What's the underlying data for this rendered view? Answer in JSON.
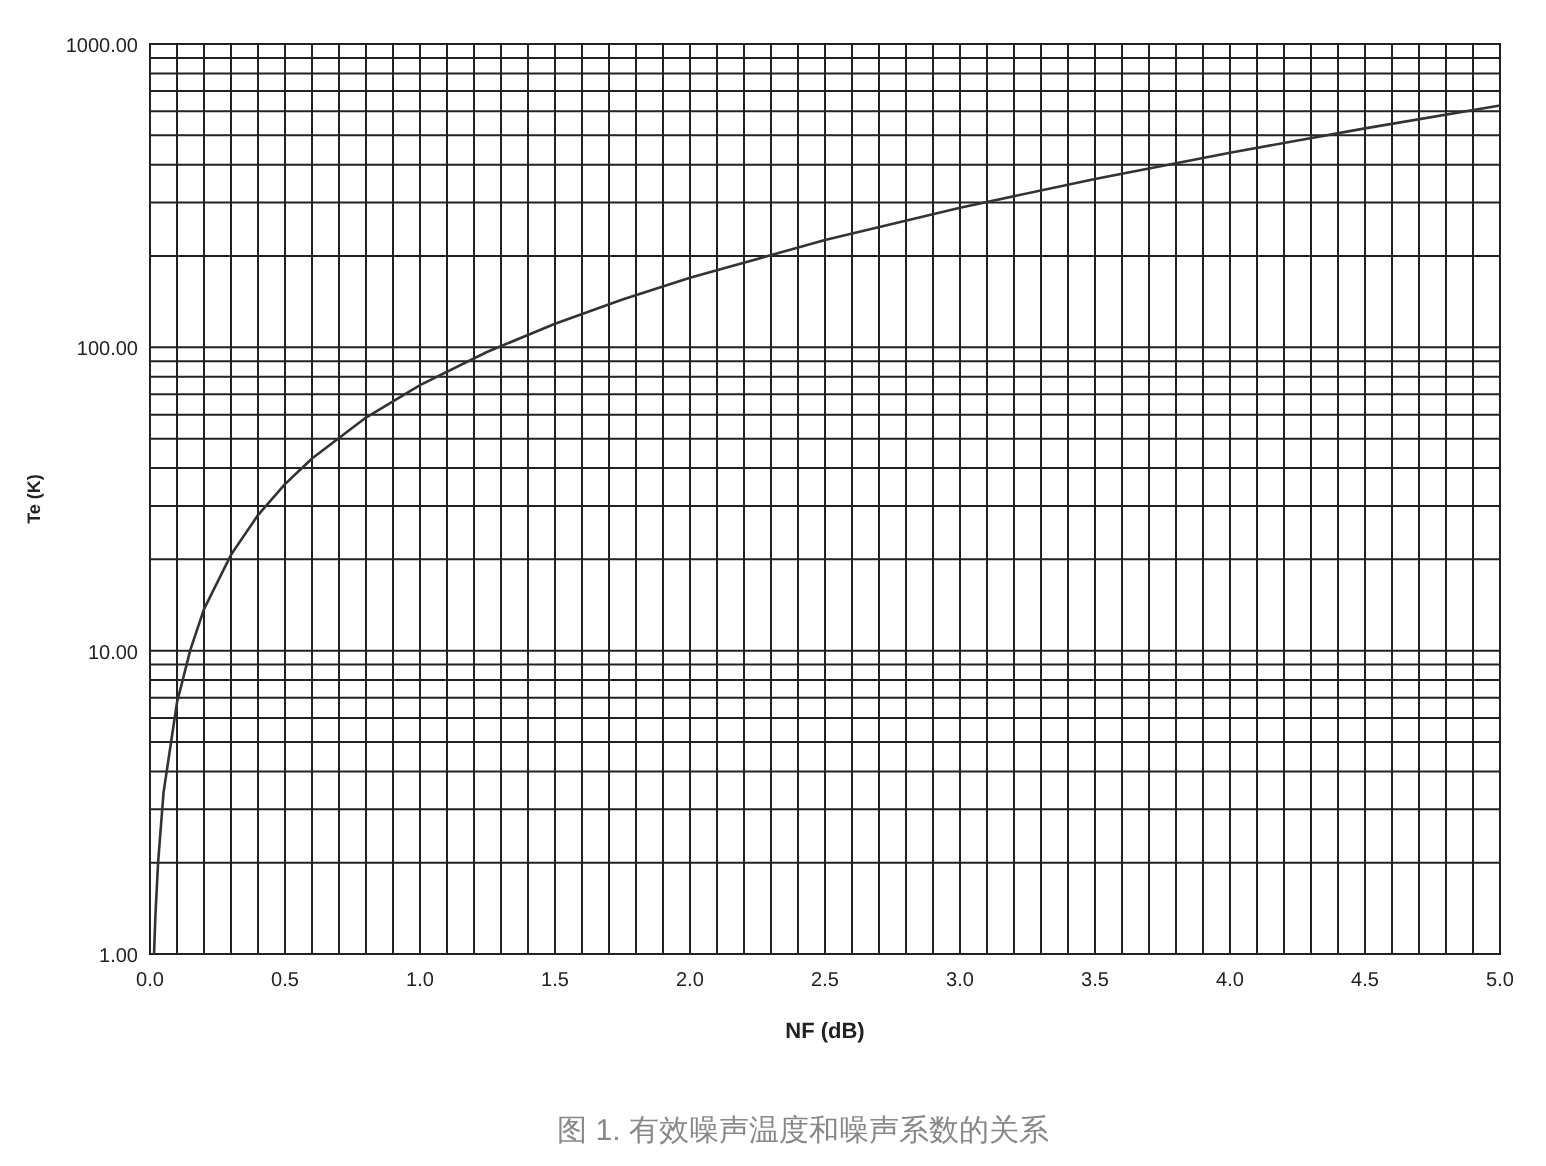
{
  "chart_data": {
    "type": "line",
    "xlabel": "NF (dB)",
    "ylabel": "Te (K)",
    "annotations": [
      "图 1. 有效噪声温度和噪声系数的关系"
    ],
    "log": "y",
    "grid": true,
    "xlim": [
      0,
      5
    ],
    "ylim": [
      1,
      1000
    ],
    "xticks": [
      {
        "value": 0,
        "label": "0.0"
      },
      {
        "value": 0.1,
        "label": null
      },
      {
        "value": 0.2,
        "label": null
      },
      {
        "value": 0.3,
        "label": null
      },
      {
        "value": 0.4,
        "label": null
      },
      {
        "value": 0.5,
        "label": "0.5"
      },
      {
        "value": 0.6,
        "label": null
      },
      {
        "value": 0.7,
        "label": null
      },
      {
        "value": 0.8,
        "label": null
      },
      {
        "value": 0.9,
        "label": null
      },
      {
        "value": 1,
        "label": "1.0"
      },
      {
        "value": 1.1,
        "label": null
      },
      {
        "value": 1.2,
        "label": null
      },
      {
        "value": 1.3,
        "label": null
      },
      {
        "value": 1.4,
        "label": null
      },
      {
        "value": 1.5,
        "label": "1.5"
      },
      {
        "value": 1.6,
        "label": null
      },
      {
        "value": 1.7,
        "label": null
      },
      {
        "value": 1.8,
        "label": null
      },
      {
        "value": 1.9,
        "label": null
      },
      {
        "value": 2,
        "label": "2.0"
      },
      {
        "value": 2.1,
        "label": null
      },
      {
        "value": 2.2,
        "label": null
      },
      {
        "value": 2.3,
        "label": null
      },
      {
        "value": 2.4,
        "label": null
      },
      {
        "value": 2.5,
        "label": "2.5"
      },
      {
        "value": 2.6,
        "label": null
      },
      {
        "value": 2.7,
        "label": null
      },
      {
        "value": 2.8,
        "label": null
      },
      {
        "value": 2.9,
        "label": null
      },
      {
        "value": 3,
        "label": "3.0"
      },
      {
        "value": 3.1,
        "label": null
      },
      {
        "value": 3.2,
        "label": null
      },
      {
        "value": 3.3,
        "label": null
      },
      {
        "value": 3.4,
        "label": null
      },
      {
        "value": 3.5,
        "label": "3.5"
      },
      {
        "value": 3.6,
        "label": null
      },
      {
        "value": 3.7,
        "label": null
      },
      {
        "value": 3.8,
        "label": null
      },
      {
        "value": 3.9,
        "label": null
      },
      {
        "value": 4,
        "label": "4.0"
      },
      {
        "value": 4.1,
        "label": null
      },
      {
        "value": 4.2,
        "label": null
      },
      {
        "value": 4.3,
        "label": null
      },
      {
        "value": 4.4,
        "label": null
      },
      {
        "value": 4.5,
        "label": "4.5"
      },
      {
        "value": 4.6,
        "label": null
      },
      {
        "value": 4.7,
        "label": null
      },
      {
        "value": 4.8,
        "label": null
      },
      {
        "value": 4.9,
        "label": null
      },
      {
        "value": 5,
        "label": "5.0"
      }
    ],
    "yticks": [
      {
        "value": 1,
        "label": "1.00"
      },
      {
        "value": 2,
        "label": null
      },
      {
        "value": 3,
        "label": null
      },
      {
        "value": 4,
        "label": null
      },
      {
        "value": 5,
        "label": null
      },
      {
        "value": 6,
        "label": null
      },
      {
        "value": 7,
        "label": null
      },
      {
        "value": 8,
        "label": null
      },
      {
        "value": 9,
        "label": null
      },
      {
        "value": 10,
        "label": "10.00"
      },
      {
        "value": 20,
        "label": null
      },
      {
        "value": 30,
        "label": null
      },
      {
        "value": 40,
        "label": null
      },
      {
        "value": 50,
        "label": null
      },
      {
        "value": 60,
        "label": null
      },
      {
        "value": 70,
        "label": null
      },
      {
        "value": 80,
        "label": null
      },
      {
        "value": 90,
        "label": null
      },
      {
        "value": 100,
        "label": "100.00"
      },
      {
        "value": 200,
        "label": null
      },
      {
        "value": 300,
        "label": null
      },
      {
        "value": 400,
        "label": null
      },
      {
        "value": 500,
        "label": null
      },
      {
        "value": 600,
        "label": null
      },
      {
        "value": 700,
        "label": null
      },
      {
        "value": 800,
        "label": null
      },
      {
        "value": 900,
        "label": null
      },
      {
        "value": 1000,
        "label": "1000.00"
      }
    ],
    "series": [
      {
        "color": "#333333",
        "x": [
          0.015,
          0.02,
          0.03,
          0.05,
          0.1,
          0.15,
          0.2,
          0.3,
          0.4,
          0.5,
          0.6,
          0.8,
          1.0,
          1.25,
          1.5,
          1.75,
          2.0,
          2.5,
          3.0,
          3.5,
          4.0,
          4.5,
          5.0
        ],
        "values": [
          1.0,
          1.34,
          2.0,
          3.4,
          6.75,
          10.1,
          13.7,
          20.7,
          28,
          35.4,
          43,
          58.7,
          75.1,
          96.7,
          119.6,
          143.7,
          169.6,
          225.8,
          288.6,
          359,
          438,
          527,
          627
        ]
      }
    ]
  }
}
